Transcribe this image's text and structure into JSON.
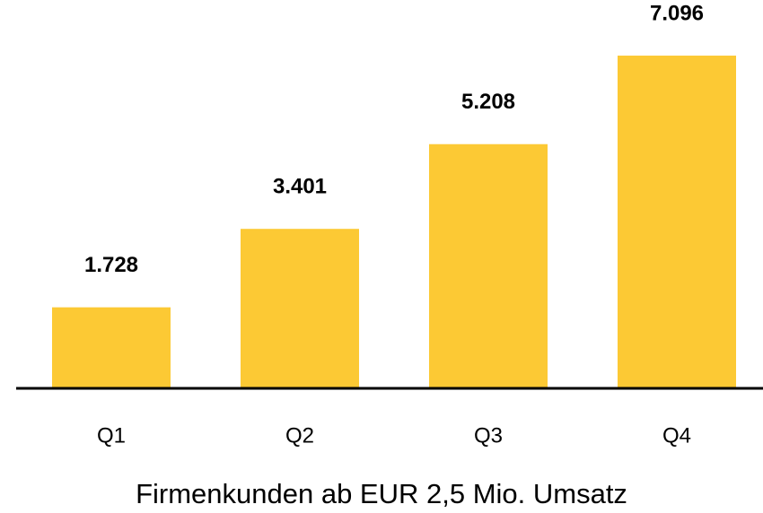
{
  "chart_data": {
    "type": "bar",
    "categories": [
      "Q1",
      "Q2",
      "Q3",
      "Q4"
    ],
    "values": [
      1728,
      3401,
      5208,
      7096
    ],
    "value_labels": [
      "1.728",
      "3.401",
      "5.208",
      "7.096"
    ],
    "color": "#fcc934",
    "xlabel": "Firmenkunden ab EUR 2,5 Mio. Umsatz"
  }
}
